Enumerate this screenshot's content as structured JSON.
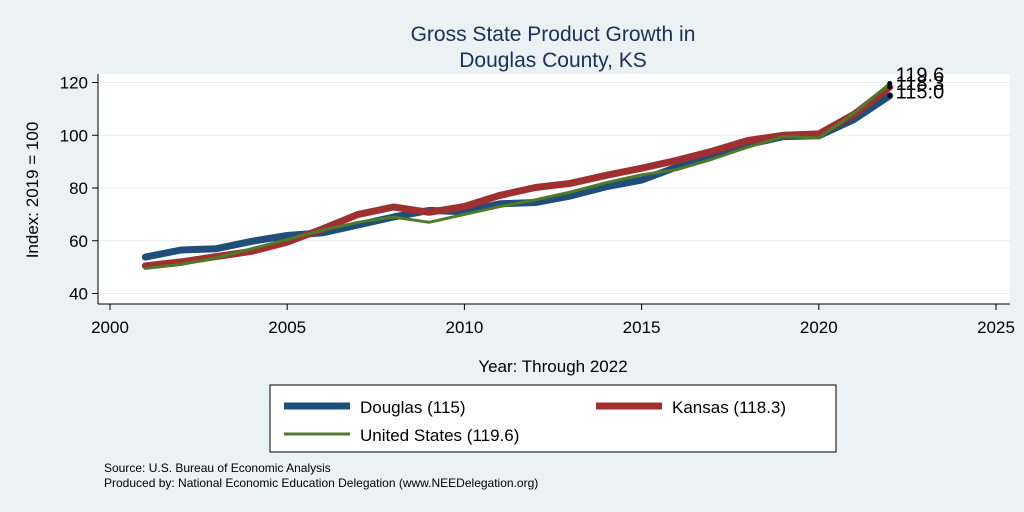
{
  "chart_data": {
    "type": "line",
    "title": [
      "Gross State Product Growth in",
      "Douglas County, KS"
    ],
    "xlabel": "Year: Through 2022",
    "ylabel": "Index: 2019 = 100",
    "xlim": [
      2000,
      2025
    ],
    "ylim": [
      35,
      125
    ],
    "xticks": [
      2000,
      2005,
      2010,
      2015,
      2020,
      2025
    ],
    "yticks": [
      40,
      60,
      80,
      100,
      120
    ],
    "grid": true,
    "legend_position": "bottom",
    "x": [
      2001,
      2002,
      2003,
      2004,
      2005,
      2006,
      2007,
      2008,
      2009,
      2010,
      2011,
      2012,
      2013,
      2014,
      2015,
      2016,
      2017,
      2018,
      2019,
      2020,
      2021,
      2022
    ],
    "series": [
      {
        "name": "Douglas",
        "legend": "Douglas  (115)",
        "color": "#1f4e79",
        "values": [
          53.8,
          56.5,
          57.0,
          59.8,
          62.0,
          63.0,
          66.0,
          69.0,
          71.5,
          71.0,
          74.0,
          74.5,
          77.0,
          80.5,
          83.0,
          88.0,
          92.0,
          96.5,
          99.5,
          99.8,
          106.0,
          115.0
        ]
      },
      {
        "name": "Kansas",
        "legend": "Kansas (118.3)",
        "color": "#a03030",
        "values": [
          50.5,
          52.0,
          54.0,
          56.0,
          59.5,
          64.5,
          70.0,
          72.8,
          70.8,
          73.0,
          77.2,
          80.2,
          81.8,
          84.8,
          87.5,
          90.5,
          94.0,
          98.0,
          100.0,
          100.5,
          108.0,
          118.3
        ]
      },
      {
        "name": "United States",
        "legend": "United States (119.6)",
        "color": "#4e7a2a",
        "values": [
          49.5,
          51.0,
          53.5,
          57.0,
          60.5,
          64.0,
          67.0,
          69.0,
          67.0,
          70.0,
          73.0,
          75.5,
          78.5,
          82.0,
          85.0,
          87.0,
          91.0,
          95.5,
          99.5,
          99.0,
          108.5,
          119.6
        ]
      }
    ],
    "end_labels": [
      {
        "text": "119.6",
        "value": 119.6
      },
      {
        "text": "118.3",
        "value": 118.3
      },
      {
        "text": "115.0",
        "value": 115.0
      }
    ],
    "notes": [
      "Source: U.S. Bureau of Economic Analysis",
      "Produced by: National Economic Education Delegation (www.NEEDelegation.org)"
    ]
  }
}
